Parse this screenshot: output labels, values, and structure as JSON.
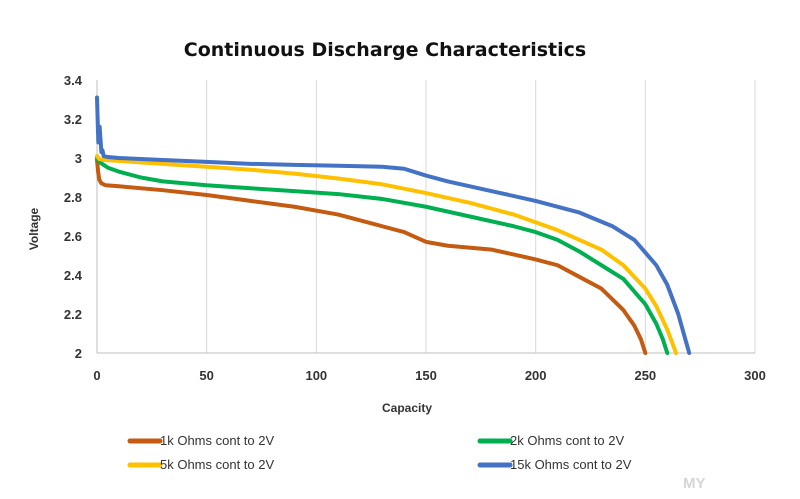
{
  "chart_data": {
    "type": "line",
    "title": "Continuous Discharge Characteristics",
    "xlabel": "Capacity",
    "ylabel": "Voltage",
    "xlim": [
      0,
      300
    ],
    "ylim": [
      2,
      3.4
    ],
    "xticks": [
      0,
      50,
      100,
      150,
      200,
      250,
      300
    ],
    "yticks": [
      2,
      2.2,
      2.4,
      2.6,
      2.8,
      3,
      3.2,
      3.4
    ],
    "xtick_labels": [
      "0",
      "50",
      "100",
      "150",
      "200",
      "250",
      "300"
    ],
    "ytick_labels": [
      "2",
      "2.2",
      "2.4",
      "2.6",
      "2.8",
      "3",
      "3.2",
      "3.4"
    ],
    "grid": "vertical",
    "legend_position": "bottom",
    "series": [
      {
        "name": "1k Ohms cont to 2V",
        "color": "#c55a11",
        "x": [
          0,
          0.5,
          1,
          2,
          4,
          10,
          30,
          50,
          70,
          90,
          110,
          130,
          140,
          150,
          160,
          180,
          200,
          210,
          220,
          230,
          240,
          245,
          248,
          250
        ],
        "y": [
          2.99,
          2.93,
          2.89,
          2.87,
          2.86,
          2.855,
          2.835,
          2.81,
          2.78,
          2.75,
          2.71,
          2.65,
          2.62,
          2.57,
          2.55,
          2.53,
          2.48,
          2.45,
          2.39,
          2.33,
          2.22,
          2.14,
          2.07,
          2.0
        ]
      },
      {
        "name": "2k Ohms cont to 2V",
        "color": "#00b050",
        "x": [
          0,
          1,
          5,
          10,
          20,
          30,
          50,
          70,
          90,
          110,
          130,
          150,
          170,
          190,
          200,
          210,
          220,
          230,
          240,
          250,
          255,
          258,
          260
        ],
        "y": [
          3.0,
          2.98,
          2.95,
          2.93,
          2.9,
          2.88,
          2.86,
          2.845,
          2.83,
          2.815,
          2.79,
          2.75,
          2.7,
          2.65,
          2.62,
          2.58,
          2.52,
          2.45,
          2.38,
          2.25,
          2.15,
          2.07,
          2.0
        ]
      },
      {
        "name": "5k Ohms cont to 2V",
        "color": "#ffc000",
        "x": [
          0,
          1,
          3,
          10,
          30,
          50,
          70,
          90,
          110,
          130,
          150,
          170,
          190,
          210,
          220,
          230,
          240,
          250,
          255,
          260,
          262,
          264
        ],
        "y": [
          3.01,
          2.995,
          2.99,
          2.985,
          2.97,
          2.955,
          2.94,
          2.92,
          2.895,
          2.865,
          2.82,
          2.77,
          2.71,
          2.63,
          2.58,
          2.53,
          2.45,
          2.33,
          2.24,
          2.12,
          2.06,
          2.0
        ]
      },
      {
        "name": "15k Ohms cont to 2V",
        "color": "#4472c4",
        "x": [
          0,
          0.6,
          1.2,
          2,
          2.5,
          3,
          5,
          10,
          30,
          50,
          70,
          90,
          110,
          130,
          140,
          150,
          160,
          180,
          200,
          220,
          235,
          245,
          255,
          260,
          265,
          268,
          270
        ],
        "y": [
          3.31,
          3.08,
          3.16,
          3.03,
          3.04,
          3.01,
          3.005,
          3.0,
          2.99,
          2.98,
          2.97,
          2.965,
          2.96,
          2.955,
          2.945,
          2.91,
          2.88,
          2.83,
          2.78,
          2.72,
          2.65,
          2.58,
          2.45,
          2.35,
          2.2,
          2.08,
          2.0
        ]
      }
    ]
  },
  "watermark": "MY"
}
